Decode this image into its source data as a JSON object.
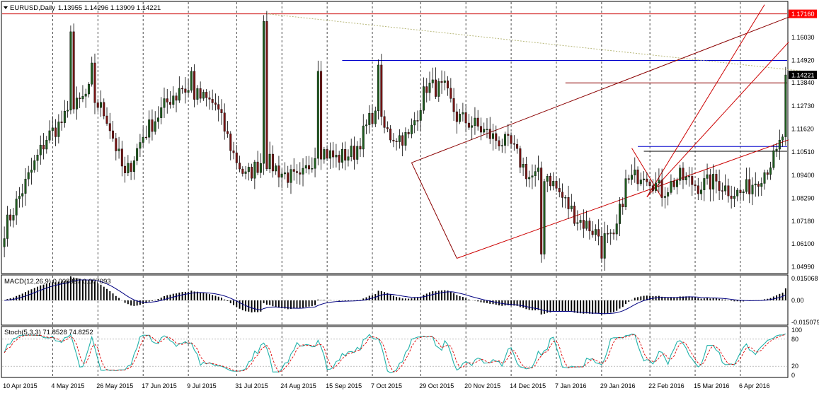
{
  "window": {
    "title": "EURUSD,Daily",
    "ohlc": "1.13955 1.14296 1.13909 1.14221"
  },
  "colors": {
    "background": "#ffffff",
    "grid": "#000000",
    "candle_up": "#1e5d1e",
    "candle_down": "#7a1414",
    "support_resistance": "#0000cc",
    "channel": "#cc0000",
    "trendline": "#8b0000",
    "dotted_trend": "#b8b87a",
    "macd_signal": "#000080",
    "stoch_main": "#20b2aa",
    "stoch_signal": "#dd0000",
    "price_tag_red": "#ff0000",
    "price_tag_black": "#000000"
  },
  "chart_data": [
    {
      "type": "candlestick",
      "title": "EURUSD,Daily",
      "ylim": [
        1.0477,
        1.1752
      ],
      "y_ticks": [
        "1.17160",
        "1.16030",
        "1.14920",
        "1.13840",
        "1.12730",
        "1.11620",
        "1.10510",
        "1.09400",
        "1.08290",
        "1.07180",
        "1.06100",
        "1.04990"
      ],
      "y_tick_values": [
        1.1716,
        1.1603,
        1.1492,
        1.1384,
        1.1273,
        1.1162,
        1.1051,
        1.094,
        1.0829,
        1.0718,
        1.061,
        1.0499
      ],
      "current_price_label": "1.14221",
      "current_price": 1.14221,
      "resistance_label": "1.17160",
      "resistance": 1.1716,
      "x_labels": [
        "10 Apr 2015",
        "4 May 2015",
        "26 May 2015",
        "17 Jun 2015",
        "9 Jul 2015",
        "31 Jul 2015",
        "24 Aug 2015",
        "15 Sep 2015",
        "7 Oct 2015",
        "29 Oct 2015",
        "20 Nov 2015",
        "14 Dec 2015",
        "7 Jan 2016",
        "29 Jan 2016",
        "22 Feb 2016",
        "15 Mar 2016",
        "6 Apr 2016"
      ],
      "bar_count": 260,
      "path_points": [
        [
          0,
          1.068
        ],
        [
          8,
          1.093
        ],
        [
          14,
          1.112
        ],
        [
          22,
          1.124
        ],
        [
          28,
          1.134
        ],
        [
          34,
          1.122
        ],
        [
          40,
          1.093
        ],
        [
          46,
          1.113
        ],
        [
          52,
          1.125
        ],
        [
          58,
          1.137
        ],
        [
          64,
          1.132
        ],
        [
          70,
          1.128
        ],
        [
          76,
          1.104
        ],
        [
          80,
          1.093
        ],
        [
          86,
          1.102
        ],
        [
          92,
          1.095
        ],
        [
          98,
          1.091
        ],
        [
          104,
          1.107
        ],
        [
          110,
          1.102
        ],
        [
          116,
          1.105
        ],
        [
          122,
          1.123
        ],
        [
          128,
          1.113
        ],
        [
          134,
          1.112
        ],
        [
          140,
          1.137
        ],
        [
          146,
          1.135
        ],
        [
          150,
          1.122
        ],
        [
          156,
          1.118
        ],
        [
          162,
          1.112
        ],
        [
          168,
          1.108
        ],
        [
          174,
          1.093
        ],
        [
          180,
          1.094
        ],
        [
          186,
          1.081
        ],
        [
          190,
          1.073
        ],
        [
          194,
          1.069
        ],
        [
          198,
          1.064
        ],
        [
          202,
          1.062
        ],
        [
          206,
          1.09
        ],
        [
          212,
          1.096
        ],
        [
          218,
          1.086
        ],
        [
          224,
          1.093
        ],
        [
          230,
          1.089
        ],
        [
          236,
          1.091
        ],
        [
          240,
          1.087
        ],
        [
          244,
          1.085
        ],
        [
          248,
          1.09
        ],
        [
          252,
          1.096
        ],
        [
          256,
          1.104
        ],
        [
          258,
          1.113
        ]
      ],
      "extra_points": [
        [
          22,
          1.163
        ],
        [
          29,
          1.148
        ],
        [
          57,
          1.144
        ],
        [
          57,
          1.13
        ],
        [
          62,
          1.144
        ],
        [
          86,
          1.168
        ],
        [
          104,
          1.144
        ],
        [
          124,
          1.147
        ],
        [
          178,
          1.056
        ],
        [
          198,
          1.054
        ]
      ],
      "channel_a": [
        [
          135,
          1.1
        ],
        [
          255,
          1.153
        ]
      ],
      "channel_b": [
        [
          150,
          1.054
        ],
        [
          260,
          1.111
        ]
      ],
      "trend_hi": [
        [
          87,
          1.1716
        ],
        [
          253,
          1.15
        ]
      ],
      "blue_hline": {
        "from": 112,
        "to": 260,
        "y": 1.1492
      },
      "blue_hline2": {
        "from": 210,
        "to": 260,
        "y": 1.1078
      },
      "blue_hline3": {
        "from": 212,
        "to": 260,
        "y": 1.1055
      },
      "dark_hline": {
        "from": 186,
        "to": 260,
        "y": 1.1384
      },
      "small_channel_lo": [
        [
          213,
          1.0835
        ],
        [
          240,
          1.125
        ]
      ],
      "small_channel_hi": [
        [
          208,
          1.107
        ],
        [
          250,
          1.176
        ]
      ]
    },
    {
      "type": "histogram",
      "title": "MACD(12,26,9) 0.008897 0.007093",
      "y_ticks": [
        "0.015068",
        "0.00",
        "-0.015079"
      ],
      "y_tick_values": [
        0.015068,
        0.0,
        -0.015079
      ]
    },
    {
      "type": "line",
      "title": "Stoch(5,3,3) 71.8528 74.8252",
      "y_ticks": [
        "100",
        "80",
        "20",
        "0"
      ],
      "y_tick_values": [
        100,
        80,
        20,
        0
      ]
    }
  ]
}
